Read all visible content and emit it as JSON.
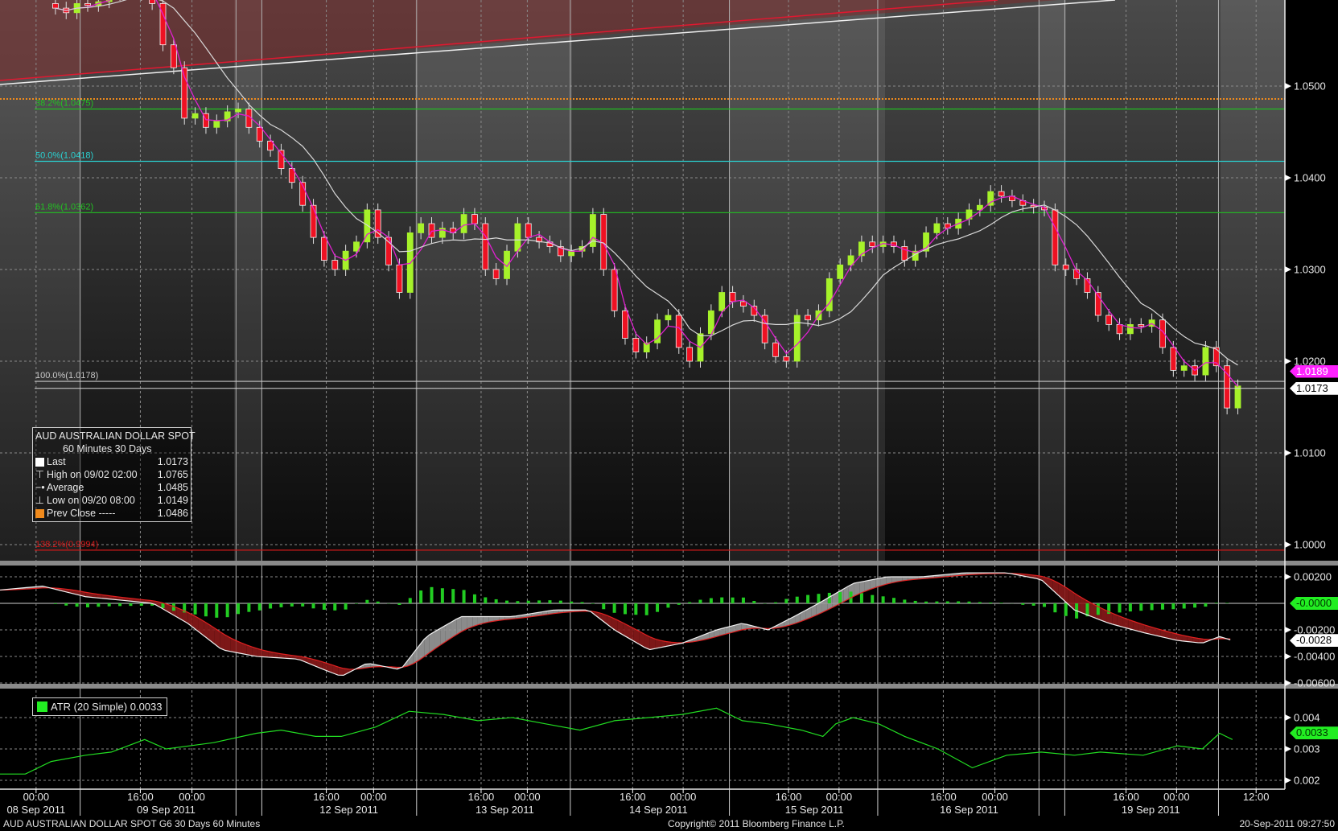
{
  "chart_data": {
    "type": "candlestick",
    "title": "AUD  AUSTRALIAN DOLLAR SPOT",
    "interval": "60 Minutes",
    "range": "30 Days",
    "price_axis": {
      "ylim": [
        0.9984,
        1.0594
      ],
      "ticks": [
        "1.0500",
        "1.0400",
        "1.0300",
        "1.0200",
        "1.0100",
        "1.0000"
      ],
      "tick_values": [
        1.05,
        1.04,
        1.03,
        1.02,
        1.01,
        1.0
      ]
    },
    "closes": [
      1.0585,
      1.058,
      1.059,
      1.0588,
      1.0592,
      1.06,
      1.061,
      1.062,
      1.06,
      1.059,
      1.0545,
      1.052,
      1.0465,
      1.047,
      1.0455,
      1.0462,
      1.0472,
      1.0475,
      1.0455,
      1.044,
      1.043,
      1.041,
      1.0395,
      1.037,
      1.0335,
      1.031,
      1.03,
      1.032,
      1.033,
      1.0365,
      1.0335,
      1.0305,
      1.0275,
      1.034,
      1.035,
      1.0335,
      1.0345,
      1.034,
      1.036,
      1.035,
      1.03,
      1.029,
      1.032,
      1.035,
      1.0335,
      1.033,
      1.0325,
      1.0315,
      1.032,
      1.0325,
      1.036,
      1.03,
      1.0255,
      1.0225,
      1.021,
      1.022,
      1.0245,
      1.025,
      1.0215,
      1.02,
      1.023,
      1.0255,
      1.0275,
      1.0265,
      1.026,
      1.025,
      1.022,
      1.0205,
      1.02,
      1.025,
      1.0245,
      1.0255,
      1.029,
      1.0305,
      1.0315,
      1.033,
      1.0325,
      1.033,
      1.0325,
      1.031,
      1.032,
      1.034,
      1.035,
      1.0345,
      1.0355,
      1.0365,
      1.037,
      1.0385,
      1.038,
      1.0375,
      1.037,
      1.0368,
      1.0365,
      1.0305,
      1.03,
      1.029,
      1.0275,
      1.025,
      1.024,
      1.023,
      1.024,
      1.0238,
      1.0245,
      1.0215,
      1.019,
      1.0195,
      1.0185,
      1.0215,
      1.0195,
      1.0149,
      1.0173
    ],
    "fib_levels": [
      {
        "label": "38.2%(1.0475)",
        "value": 1.0475,
        "color": "#22c022"
      },
      {
        "label": "50.0%(1.0418)",
        "value": 1.0418,
        "color": "#2ad0d0"
      },
      {
        "label": "61.8%(1.0362)",
        "value": 1.0362,
        "color": "#22c022"
      },
      {
        "label": "100.0%(1.0178)",
        "value": 1.0178,
        "color": "#c8c8c8"
      },
      {
        "label": "138.2%(0.9994)",
        "value": 0.9994,
        "color": "#d01818"
      }
    ],
    "prev_close_line": 1.0486,
    "price_tags": [
      {
        "value": 1.0189,
        "label": "1.0189",
        "bg": "#ff22ff",
        "fg": "#ffffff"
      },
      {
        "value": 1.0173,
        "label": "1.0173",
        "bg": "#ffffff",
        "fg": "#000000"
      }
    ],
    "legend": {
      "title": "AUD  AUSTRALIAN DOLLAR SPOT",
      "subtitle": "60 Minutes  30 Days",
      "rows": [
        {
          "icon": "last-swatch",
          "label": "Last",
          "value": "1.0173"
        },
        {
          "icon": "high-marker",
          "label": "High on 09/02 02:00",
          "value": "1.0765"
        },
        {
          "icon": "average-marker",
          "label": "Average",
          "value": "1.0485"
        },
        {
          "icon": "low-marker",
          "label": "Low on 09/20 08:00",
          "value": "1.0149"
        },
        {
          "icon": "prev-close-swatch",
          "label": "Prev Close -----",
          "value": "1.0486"
        }
      ]
    },
    "macd": {
      "ticks": [
        "0.00200",
        "-0.00200",
        "-0.00400",
        "-0.00600"
      ],
      "tick_values": [
        0.002,
        -0.002,
        -0.004,
        -0.006
      ],
      "points": [
        [
          -5.2,
          0.001
        ],
        [
          -1.2,
          0.0013
        ],
        [
          2.8,
          0.0005
        ],
        [
          9.1,
          0.0
        ],
        [
          12.3,
          -0.0015
        ],
        [
          15.5,
          -0.0035
        ],
        [
          18.7,
          -0.004
        ],
        [
          22.6,
          -0.0042
        ],
        [
          25,
          -0.005
        ],
        [
          26.6,
          -0.0055
        ],
        [
          29,
          -0.0045
        ],
        [
          32.1,
          -0.005
        ],
        [
          34.5,
          -0.0025
        ],
        [
          37.7,
          -0.001
        ],
        [
          42.5,
          -0.001
        ],
        [
          46.4,
          -0.0005
        ],
        [
          49.6,
          -0.0005
        ],
        [
          52,
          -0.002
        ],
        [
          55.2,
          -0.0035
        ],
        [
          58.3,
          -0.003
        ],
        [
          61.5,
          -0.002
        ],
        [
          63.9,
          -0.0015
        ],
        [
          66.3,
          -0.002
        ],
        [
          68.7,
          -0.001
        ],
        [
          71,
          0.0
        ],
        [
          74.2,
          0.0015
        ],
        [
          77.4,
          0.002
        ],
        [
          80.6,
          0.002
        ],
        [
          84.5,
          0.0023
        ],
        [
          88.5,
          0.0023
        ],
        [
          91.7,
          0.0018
        ],
        [
          94.8,
          -0.0005
        ],
        [
          98,
          -0.0015
        ],
        [
          101.2,
          -0.0022
        ],
        [
          104.4,
          -0.0028
        ],
        [
          106.7,
          -0.003
        ],
        [
          108.3,
          -0.0025
        ],
        [
          109.5,
          -0.0028
        ]
      ],
      "tags": [
        {
          "value": 0.0,
          "label": "-0.0000",
          "bg": "#22ee22",
          "fg": "#003300"
        },
        {
          "value": -0.0028,
          "label": "-0.0028",
          "bg": "#ffffff",
          "fg": "#000000"
        }
      ]
    },
    "atr": {
      "legend": "ATR (20 Simple) 0.0033",
      "color": "#22dd22",
      "ticks": [
        "0.004",
        "0.003",
        "0.002"
      ],
      "tick_values": [
        0.004,
        0.003,
        0.002
      ],
      "points": [
        [
          -5.2,
          0.0022
        ],
        [
          -2.8,
          0.0022
        ],
        [
          -0.4,
          0.0026
        ],
        [
          2.8,
          0.0028
        ],
        [
          5.2,
          0.0029
        ],
        [
          8.3,
          0.0033
        ],
        [
          10.3,
          0.003
        ],
        [
          14.7,
          0.0032
        ],
        [
          18.7,
          0.0035
        ],
        [
          21,
          0.0036
        ],
        [
          24.2,
          0.0034
        ],
        [
          26.6,
          0.0034
        ],
        [
          29.8,
          0.0037
        ],
        [
          32.9,
          0.0042
        ],
        [
          36.1,
          0.0041
        ],
        [
          39.3,
          0.0039
        ],
        [
          42.5,
          0.004
        ],
        [
          45.6,
          0.0038
        ],
        [
          48.8,
          0.0036
        ],
        [
          52,
          0.0039
        ],
        [
          55.2,
          0.004
        ],
        [
          58.3,
          0.0041
        ],
        [
          61.5,
          0.0043
        ],
        [
          63.9,
          0.0039
        ],
        [
          66.3,
          0.0038
        ],
        [
          69.4,
          0.0036
        ],
        [
          71.4,
          0.0034
        ],
        [
          72.6,
          0.0038
        ],
        [
          74.2,
          0.004
        ],
        [
          76.6,
          0.0038
        ],
        [
          79,
          0.0034
        ],
        [
          82.1,
          0.003
        ],
        [
          85.3,
          0.0024
        ],
        [
          88.5,
          0.0028
        ],
        [
          91.7,
          0.0029
        ],
        [
          94.8,
          0.0028
        ],
        [
          97.2,
          0.0029
        ],
        [
          101.2,
          0.0028
        ],
        [
          104.4,
          0.0031
        ],
        [
          106.7,
          0.003
        ],
        [
          108.3,
          0.0035
        ],
        [
          109.5,
          0.0033
        ]
      ],
      "tag": {
        "value": 0.0033,
        "label": "0.0033",
        "bg": "#22ee22",
        "fg": "#003300"
      }
    },
    "x_axis": {
      "time_labels": [
        [
          -1.8,
          "00:00"
        ],
        [
          7.9,
          "16:00"
        ],
        [
          12.7,
          "00:00"
        ],
        [
          25.2,
          "16:00"
        ],
        [
          29.6,
          "00:00"
        ],
        [
          39.6,
          "16:00"
        ],
        [
          43.9,
          "00:00"
        ],
        [
          53.7,
          "16:00"
        ],
        [
          58.4,
          "00:00"
        ],
        [
          68.2,
          "16:00"
        ],
        [
          72.9,
          "00:00"
        ],
        [
          82.6,
          "16:00"
        ],
        [
          87.4,
          "00:00"
        ],
        [
          99.6,
          "16:00"
        ],
        [
          104.3,
          "00:00"
        ],
        [
          111.7,
          "12:00"
        ]
      ],
      "date_labels": [
        [
          -1.8,
          "08 Sep 2011"
        ],
        [
          10.3,
          "09 Sep 2011"
        ],
        [
          27.3,
          "12 Sep 2011"
        ],
        [
          41.8,
          "13 Sep 2011"
        ],
        [
          56.1,
          "14 Sep 2011"
        ],
        [
          70.6,
          "15 Sep 2011"
        ],
        [
          85,
          "16 Sep 2011"
        ],
        [
          101.9,
          "19 Sep 2011"
        ]
      ],
      "day_separators": [
        2.3,
        16.8,
        19.2,
        33.6,
        47.9,
        62.7,
        76.5,
        91.5,
        93.9,
        108.2
      ]
    }
  },
  "footer": {
    "left": "AUD  AUSTRALIAN DOLLAR SPOT      G6     30 Days   60 Minutes",
    "center": "Copyright© 2011 Bloomberg Finance L.P.",
    "right": "20-Sep-2011 09:27:50"
  },
  "colors": {
    "up": "#a6f22a",
    "down": "#ee1122",
    "ma_fast": "#e020d0",
    "ma_slow": "#d8d8d8",
    "prev_close": "#f08a1c",
    "channel_fill": "#6a2a2a"
  }
}
